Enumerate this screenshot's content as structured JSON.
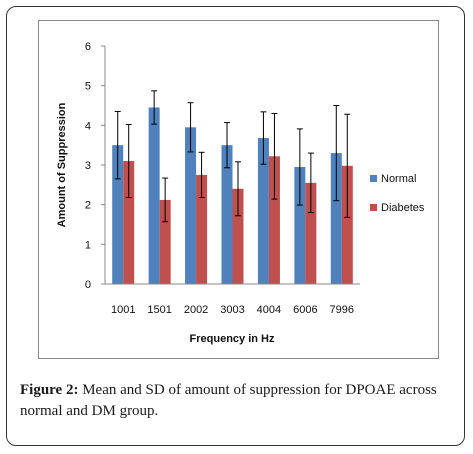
{
  "caption": {
    "label": "Figure 2:",
    "text": " Mean and SD of amount of suppression for DPOAE across normal and DM group."
  },
  "chart_data": {
    "type": "bar",
    "title": "",
    "xlabel": "Frequency in Hz",
    "ylabel": "Amount of Suppression",
    "ylim": [
      0,
      6
    ],
    "yticks": [
      "0",
      "1",
      "2",
      "3",
      "4",
      "5",
      "6"
    ],
    "categories": [
      "1001",
      "1501",
      "2002",
      "3003",
      "4004",
      "6006",
      "7996"
    ],
    "grid": false,
    "legend_position": "right",
    "error_bars": true,
    "series": [
      {
        "name": "Normal",
        "color": "#4f81bd",
        "values": [
          3.5,
          4.45,
          3.95,
          3.5,
          3.68,
          2.95,
          3.3
        ],
        "sd": [
          0.85,
          0.42,
          0.62,
          0.57,
          0.66,
          0.96,
          1.2
        ]
      },
      {
        "name": "Diabetes",
        "color": "#c0504d",
        "values": [
          3.1,
          2.12,
          2.75,
          2.4,
          3.22,
          2.55,
          2.98
        ],
        "sd": [
          0.92,
          0.55,
          0.57,
          0.68,
          1.08,
          0.75,
          1.3
        ]
      }
    ]
  }
}
